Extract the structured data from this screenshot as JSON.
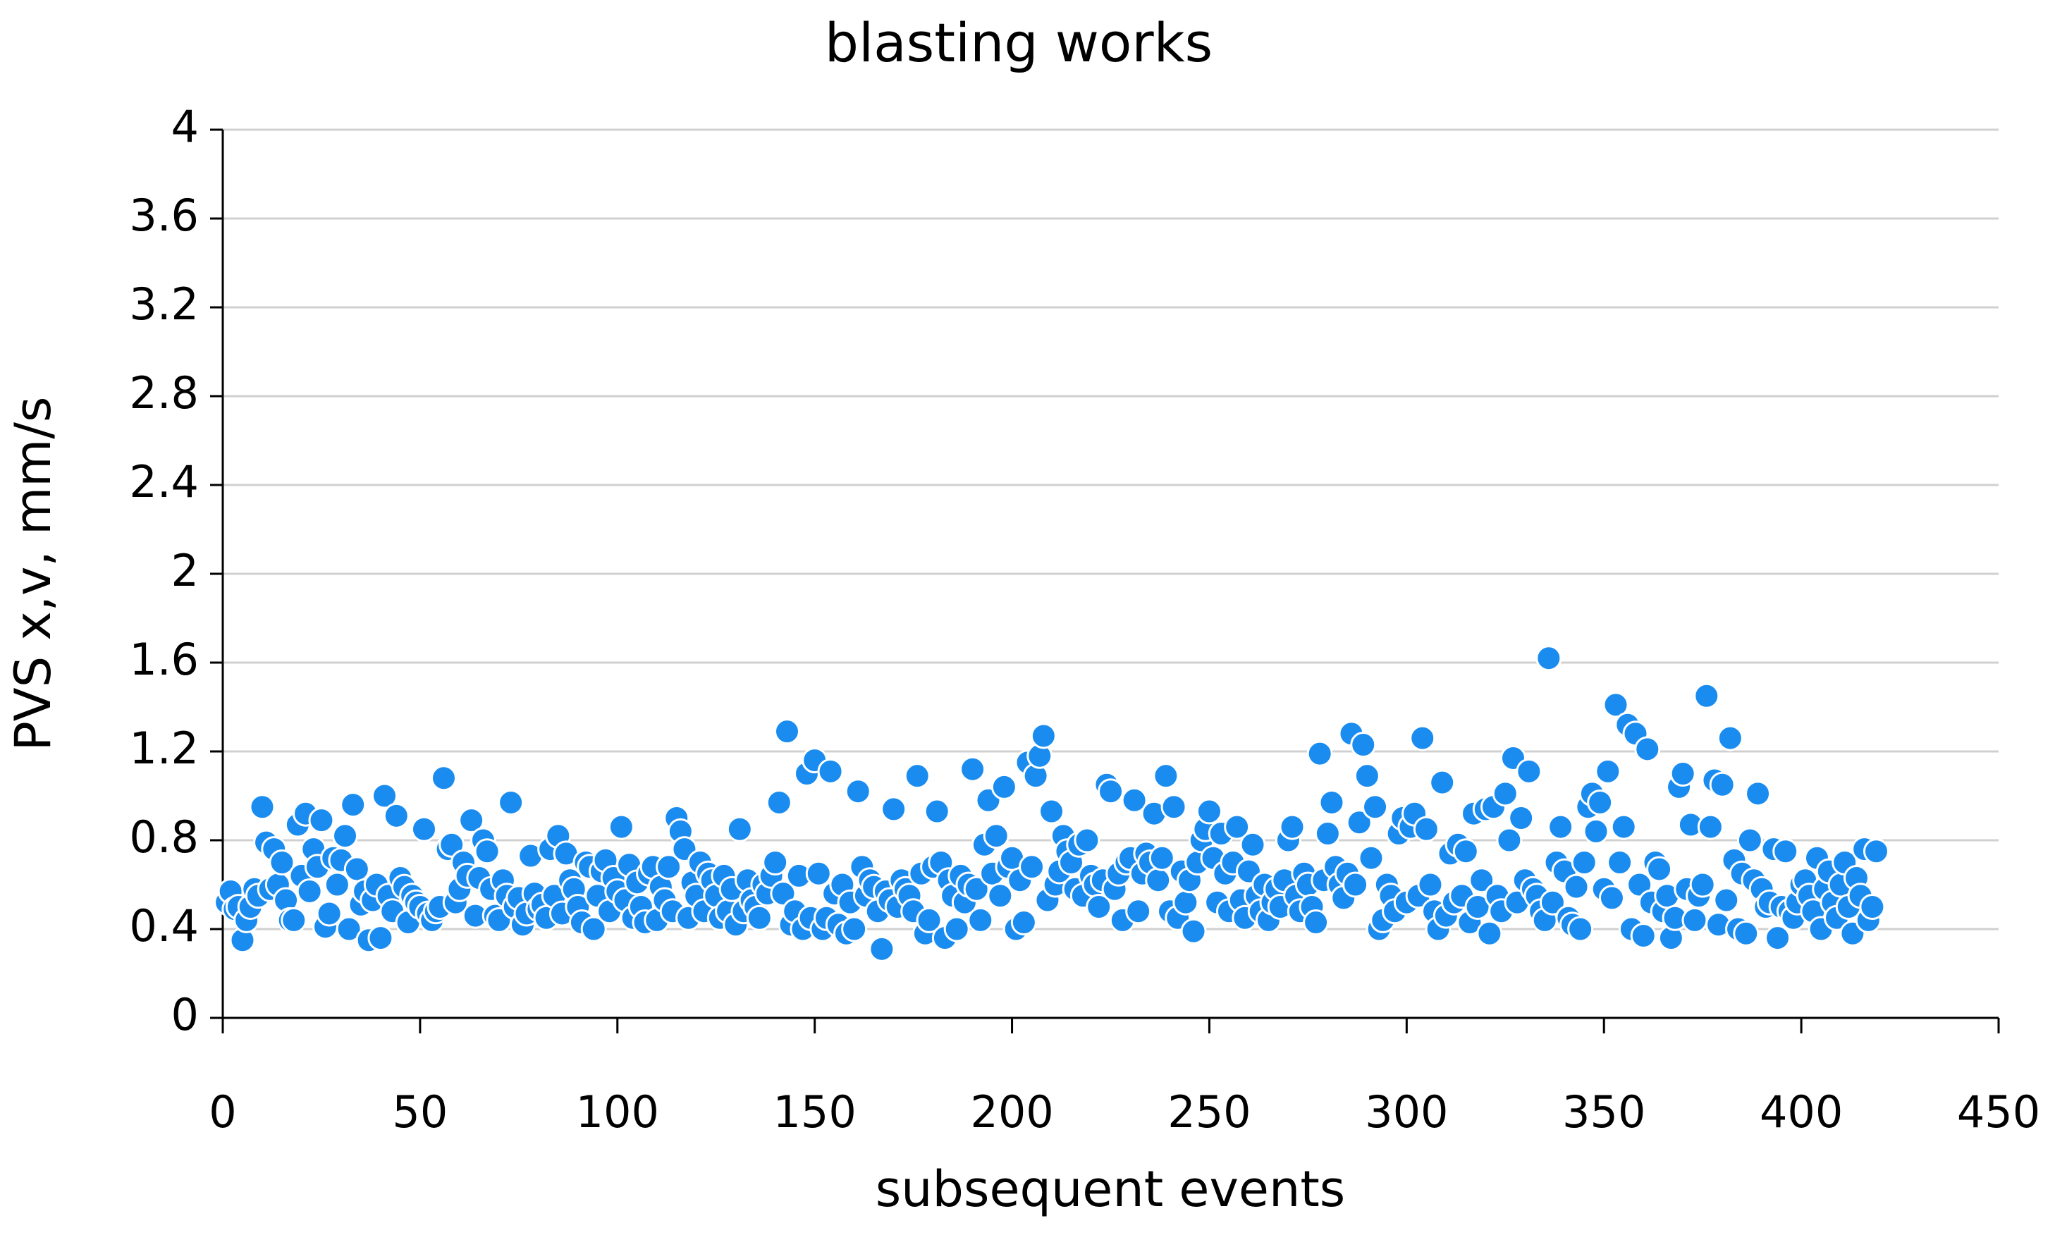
{
  "chart_data": {
    "type": "scatter",
    "title": "blasting works",
    "xlabel": "subsequent events",
    "ylabel": "PVS x,v, mm/s",
    "color": "#1a8cf0",
    "grid": true,
    "xlim": [
      0,
      450
    ],
    "xticks": [
      0,
      50,
      100,
      150,
      200,
      250,
      300,
      350,
      400,
      450
    ],
    "ylim": [
      0,
      4
    ],
    "yticks": [
      0,
      0.4,
      0.8,
      1.2,
      1.6,
      2,
      2.4,
      2.8,
      3.2,
      3.6,
      4
    ],
    "x": [
      1,
      2,
      3,
      4,
      5,
      6,
      7,
      8,
      9,
      10,
      11,
      12,
      13,
      14,
      15,
      16,
      17,
      18,
      19,
      20,
      21,
      22,
      23,
      24,
      25,
      26,
      27,
      28,
      29,
      30,
      31,
      32,
      33,
      34,
      35,
      36,
      37,
      38,
      39,
      40,
      41,
      42,
      43,
      44,
      45,
      46,
      47,
      48,
      49,
      50,
      51,
      52,
      53,
      54,
      55,
      56,
      57,
      58,
      59,
      60,
      61,
      62,
      63,
      64,
      65,
      66,
      67,
      68,
      69,
      70,
      71,
      72,
      73,
      74,
      75,
      76,
      77,
      78,
      79,
      80,
      81,
      82,
      83,
      84,
      85,
      86,
      87,
      88,
      89,
      90,
      91,
      92,
      93,
      94,
      95,
      96,
      97,
      98,
      99,
      100,
      101,
      102,
      103,
      104,
      105,
      106,
      107,
      108,
      109,
      110,
      111,
      112,
      113,
      114,
      115,
      116,
      117,
      118,
      119,
      120,
      121,
      122,
      123,
      124,
      125,
      126,
      127,
      128,
      129,
      130,
      131,
      132,
      133,
      134,
      135,
      136,
      137,
      138,
      139,
      140,
      141,
      142,
      143,
      144,
      145,
      146,
      147,
      148,
      149,
      150,
      151,
      152,
      153,
      154,
      155,
      156,
      157,
      158,
      159,
      160,
      161,
      162,
      163,
      164,
      165,
      166,
      167,
      168,
      169,
      170,
      171,
      172,
      173,
      174,
      175,
      176,
      177,
      178,
      179,
      180,
      181,
      182,
      183,
      184,
      185,
      186,
      187,
      188,
      189,
      190,
      191,
      192,
      193,
      194,
      195,
      196,
      197,
      198,
      199,
      200,
      201,
      202,
      203,
      204,
      205,
      206,
      207,
      208,
      209,
      210,
      211,
      212,
      213,
      214,
      215,
      216,
      217,
      218,
      219,
      220,
      221,
      222,
      223,
      224,
      225,
      226,
      227,
      228,
      229,
      230,
      231,
      232,
      233,
      234,
      235,
      236,
      237,
      238,
      239,
      240,
      241,
      242,
      243,
      244,
      245,
      246,
      247,
      248,
      249,
      250,
      251,
      252,
      253,
      254,
      255,
      256,
      257,
      258,
      259,
      260,
      261,
      262,
      263,
      264,
      265,
      266,
      267,
      268,
      269,
      270,
      271,
      272,
      273,
      274,
      275,
      276,
      277,
      278,
      279,
      280,
      281,
      282,
      283,
      284,
      285,
      286,
      287,
      288,
      289,
      290,
      291,
      292,
      293,
      294,
      295,
      296,
      297,
      298,
      299,
      300,
      301,
      302,
      303,
      304,
      305,
      306,
      307,
      308,
      309,
      310,
      311,
      312,
      313,
      314,
      315,
      316,
      317,
      318,
      319,
      320,
      321,
      322,
      323,
      324,
      325,
      326,
      327,
      328,
      329,
      330,
      331,
      332,
      333,
      334,
      335,
      336,
      337,
      338,
      339,
      340,
      341,
      342,
      343,
      344,
      345,
      346,
      347,
      348,
      349,
      350,
      351,
      352,
      353,
      354,
      355,
      356,
      357,
      358,
      359,
      360,
      361,
      362,
      363,
      364,
      365,
      366,
      367,
      368,
      369,
      370,
      371,
      372,
      373,
      374,
      375,
      376,
      377,
      378,
      379,
      380,
      381,
      382,
      383,
      384,
      385,
      386,
      387,
      388,
      389,
      390,
      391,
      392,
      393,
      394,
      395,
      396,
      397,
      398,
      399,
      400,
      401,
      402,
      403,
      404,
      405,
      406,
      407,
      408,
      409,
      410,
      411,
      412,
      413,
      414,
      415,
      416,
      417,
      418,
      419
    ],
    "values": [
      0.52,
      0.57,
      0.49,
      0.5,
      0.35,
      0.44,
      0.5,
      0.58,
      0.55,
      0.95,
      0.79,
      0.58,
      0.76,
      0.6,
      0.7,
      0.53,
      0.44,
      0.44,
      0.87,
      0.64,
      0.92,
      0.57,
      0.76,
      0.68,
      0.89,
      0.41,
      0.47,
      0.72,
      0.6,
      0.71,
      0.82,
      0.4,
      0.96,
      0.67,
      0.51,
      0.57,
      0.35,
      0.53,
      0.6,
      0.36,
      1.0,
      0.55,
      0.48,
      0.91,
      0.63,
      0.59,
      0.43,
      0.55,
      0.52,
      0.5,
      0.85,
      0.47,
      0.44,
      0.48,
      0.5,
      1.08,
      0.76,
      0.78,
      0.52,
      0.58,
      0.7,
      0.64,
      0.89,
      0.46,
      0.63,
      0.8,
      0.75,
      0.58,
      0.46,
      0.44,
      0.62,
      0.55,
      0.97,
      0.5,
      0.54,
      0.42,
      0.47,
      0.73,
      0.56,
      0.49,
      0.51,
      0.45,
      0.76,
      0.55,
      0.82,
      0.47,
      0.74,
      0.62,
      0.58,
      0.5,
      0.43,
      0.7,
      0.68,
      0.4,
      0.55,
      0.66,
      0.71,
      0.48,
      0.63,
      0.57,
      0.86,
      0.53,
      0.69,
      0.45,
      0.61,
      0.5,
      0.43,
      0.65,
      0.68,
      0.44,
      0.59,
      0.53,
      0.68,
      0.48,
      0.9,
      0.84,
      0.76,
      0.45,
      0.61,
      0.55,
      0.7,
      0.48,
      0.65,
      0.62,
      0.55,
      0.45,
      0.64,
      0.48,
      0.58,
      0.42,
      0.85,
      0.48,
      0.62,
      0.53,
      0.5,
      0.45,
      0.6,
      0.56,
      0.64,
      0.7,
      0.97,
      0.56,
      1.29,
      0.42,
      0.48,
      0.64,
      0.4,
      1.1,
      0.45,
      1.16,
      0.65,
      0.4,
      0.45,
      1.11,
      0.56,
      0.42,
      0.6,
      0.38,
      0.52,
      0.4,
      1.02,
      0.68,
      0.55,
      0.62,
      0.59,
      0.48,
      0.31,
      0.57,
      0.53,
      0.94,
      0.5,
      0.62,
      0.58,
      0.55,
      0.48,
      1.09,
      0.65,
      0.38,
      0.44,
      0.68,
      0.93,
      0.7,
      0.36,
      0.62,
      0.55,
      0.4,
      0.64,
      0.52,
      0.6,
      1.12,
      0.58,
      0.44,
      0.78,
      0.98,
      0.65,
      0.82,
      0.55,
      1.04,
      0.68,
      0.72,
      0.4,
      0.62,
      0.43,
      1.15,
      0.68,
      1.09,
      1.18,
      1.27,
      0.53,
      0.93,
      0.6,
      0.66,
      0.82,
      0.75,
      0.7,
      0.58,
      0.78,
      0.55,
      0.8,
      0.64,
      0.6,
      0.5,
      0.62,
      1.05,
      1.02,
      0.58,
      0.65,
      0.44,
      0.7,
      0.72,
      0.98,
      0.48,
      0.65,
      0.74,
      0.7,
      0.92,
      0.62,
      0.72,
      1.09,
      0.48,
      0.95,
      0.45,
      0.66,
      0.52,
      0.62,
      0.39,
      0.7,
      0.8,
      0.85,
      0.93,
      0.72,
      0.52,
      0.83,
      0.65,
      0.48,
      0.7,
      0.86,
      0.53,
      0.45,
      0.66,
      0.78,
      0.55,
      0.48,
      0.6,
      0.44,
      0.52,
      0.58,
      0.5,
      0.62,
      0.8,
      0.86,
      0.55,
      0.48,
      0.65,
      0.6,
      0.5,
      0.43,
      1.19,
      0.62,
      0.83,
      0.97,
      0.68,
      0.6,
      0.54,
      0.65,
      1.28,
      0.6,
      0.88,
      1.23,
      1.09,
      0.72,
      0.95,
      0.4,
      0.44,
      0.6,
      0.55,
      0.48,
      0.83,
      0.9,
      0.52,
      0.86,
      0.92,
      0.55,
      1.26,
      0.85,
      0.6,
      0.48,
      0.4,
      1.06,
      0.46,
      0.74,
      0.52,
      0.78,
      0.55,
      0.75,
      0.43,
      0.92,
      0.5,
      0.62,
      0.94,
      0.38,
      0.95,
      0.55,
      0.48,
      1.01,
      0.8,
      1.17,
      0.52,
      0.9,
      0.62,
      1.11,
      0.58,
      0.55,
      0.48,
      0.44,
      1.62,
      0.52,
      0.7,
      0.86,
      0.66,
      0.45,
      0.42,
      0.59,
      0.4,
      0.7,
      0.95,
      1.01,
      0.84,
      0.97,
      0.58,
      1.11,
      0.54,
      1.41,
      0.7,
      0.86,
      1.32,
      0.4,
      1.28,
      0.6,
      0.37,
      1.21,
      0.52,
      0.7,
      0.67,
      0.48,
      0.55,
      0.36,
      0.45,
      1.04,
      1.1,
      0.58,
      0.87,
      0.44,
      0.55,
      0.6,
      1.45,
      0.86,
      1.07,
      0.42,
      1.05,
      0.53,
      1.26,
      0.71,
      0.4,
      0.65,
      0.38,
      0.8,
      0.62,
      1.01,
      0.58,
      0.5,
      0.52,
      0.76,
      0.36,
      0.5,
      0.75,
      0.48,
      0.45,
      0.52,
      0.6,
      0.62,
      0.55,
      0.48,
      0.72,
      0.4,
      0.58,
      0.66,
      0.52,
      0.45,
      0.6,
      0.7,
      0.5,
      0.38,
      0.63,
      0.55,
      0.76,
      0.44,
      0.5,
      0.75
    ]
  }
}
